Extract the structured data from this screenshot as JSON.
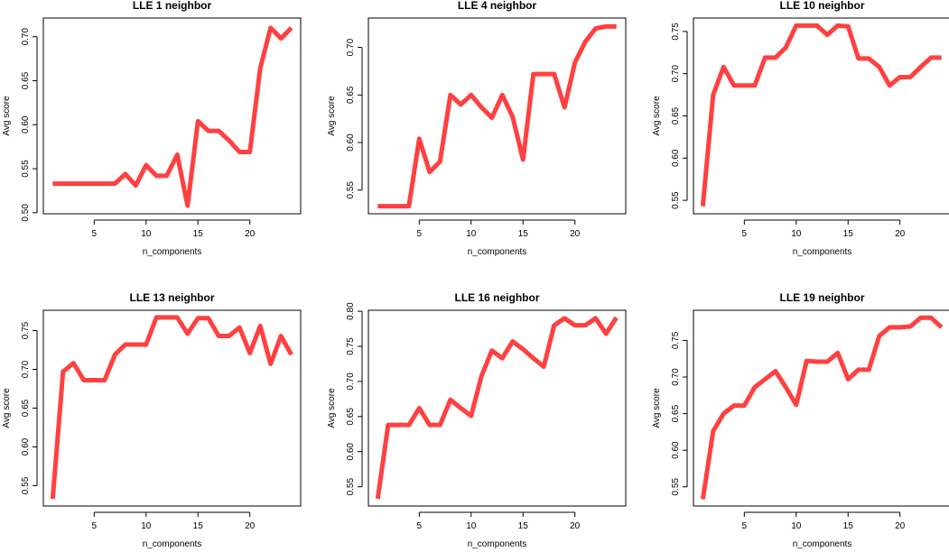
{
  "colors": {
    "line": "#ff4040",
    "axis": "#000000",
    "background": "#ffffff"
  },
  "chart_data": [
    {
      "type": "line",
      "title": "LLE 1 neighbor",
      "xlabel": "n_components",
      "ylabel": "Avg score",
      "xlim": [
        0.1,
        24.9
      ],
      "ylim": [
        0.4988,
        0.7212
      ],
      "xticks": [
        5,
        10,
        15,
        20
      ],
      "yticks": [
        0.5,
        0.55,
        0.6,
        0.65,
        0.7
      ],
      "ytick_labels": [
        "0.50",
        "0.55",
        "0.60",
        "0.65",
        "0.70"
      ],
      "x": [
        1,
        2,
        3,
        4,
        5,
        6,
        7,
        8,
        9,
        10,
        11,
        12,
        13,
        14,
        15,
        16,
        17,
        18,
        19,
        20,
        21,
        22,
        23,
        24
      ],
      "y": [
        0.533,
        0.533,
        0.533,
        0.533,
        0.533,
        0.533,
        0.533,
        0.544,
        0.531,
        0.554,
        0.542,
        0.542,
        0.566,
        0.508,
        0.604,
        0.593,
        0.593,
        0.582,
        0.569,
        0.569,
        0.664,
        0.71,
        0.698,
        0.71
      ]
    },
    {
      "type": "line",
      "title": "LLE 4 neighbor",
      "xlabel": "n_components",
      "ylabel": "Avg score",
      "xlim": [
        0.1,
        24.9
      ],
      "ylim": [
        0.5251,
        0.7309
      ],
      "xticks": [
        5,
        10,
        15,
        20
      ],
      "yticks": [
        0.55,
        0.6,
        0.65,
        0.7
      ],
      "ytick_labels": [
        "0.55",
        "0.60",
        "0.65",
        "0.70"
      ],
      "x": [
        1,
        2,
        3,
        4,
        5,
        6,
        7,
        8,
        9,
        10,
        11,
        12,
        13,
        14,
        15,
        16,
        17,
        18,
        19,
        20,
        21,
        22,
        23,
        24
      ],
      "y": [
        0.533,
        0.533,
        0.533,
        0.533,
        0.604,
        0.569,
        0.58,
        0.65,
        0.64,
        0.65,
        0.637,
        0.626,
        0.65,
        0.627,
        0.582,
        0.672,
        0.672,
        0.672,
        0.637,
        0.684,
        0.706,
        0.72,
        0.722,
        0.722
      ]
    },
    {
      "type": "line",
      "title": "LLE 10 neighbor",
      "xlabel": "n_components",
      "ylabel": "Avg score",
      "xlim": [
        0.1,
        24.9
      ],
      "ylim": [
        0.5341,
        0.7659
      ],
      "xticks": [
        5,
        10,
        15,
        20
      ],
      "yticks": [
        0.55,
        0.6,
        0.65,
        0.7,
        0.75
      ],
      "ytick_labels": [
        "0.55",
        "0.60",
        "0.65",
        "0.70",
        "0.75"
      ],
      "x": [
        1,
        2,
        3,
        4,
        5,
        6,
        7,
        8,
        9,
        10,
        11,
        12,
        13,
        14,
        15,
        16,
        17,
        18,
        19,
        20,
        21,
        22,
        23,
        24
      ],
      "y": [
        0.543,
        0.675,
        0.708,
        0.686,
        0.686,
        0.686,
        0.719,
        0.719,
        0.731,
        0.757,
        0.757,
        0.757,
        0.746,
        0.757,
        0.756,
        0.718,
        0.718,
        0.708,
        0.686,
        0.696,
        0.696,
        0.708,
        0.719,
        0.719
      ]
    },
    {
      "type": "line",
      "title": "LLE 13 neighbor",
      "xlabel": "n_components",
      "ylabel": "Avg score",
      "xlim": [
        0.1,
        24.9
      ],
      "ylim": [
        0.5238,
        0.7762
      ],
      "xticks": [
        5,
        10,
        15,
        20
      ],
      "yticks": [
        0.55,
        0.6,
        0.65,
        0.7,
        0.75
      ],
      "ytick_labels": [
        "0.55",
        "0.60",
        "0.65",
        "0.70",
        "0.75"
      ],
      "x": [
        1,
        2,
        3,
        4,
        5,
        6,
        7,
        8,
        9,
        10,
        11,
        12,
        13,
        14,
        15,
        16,
        17,
        18,
        19,
        20,
        21,
        22,
        23,
        24
      ],
      "y": [
        0.533,
        0.697,
        0.708,
        0.686,
        0.686,
        0.686,
        0.719,
        0.732,
        0.732,
        0.732,
        0.767,
        0.767,
        0.767,
        0.746,
        0.766,
        0.766,
        0.743,
        0.743,
        0.754,
        0.721,
        0.756,
        0.707,
        0.743,
        0.719
      ]
    },
    {
      "type": "line",
      "title": "LLE 16 neighbor",
      "xlabel": "n_components",
      "ylabel": "Avg score",
      "xlim": [
        0.1,
        24.9
      ],
      "ylim": [
        0.5226,
        0.8014
      ],
      "xticks": [
        5,
        10,
        15,
        20
      ],
      "yticks": [
        0.55,
        0.6,
        0.65,
        0.7,
        0.75,
        0.8
      ],
      "ytick_labels": [
        "0.55",
        "0.60",
        "0.65",
        "0.70",
        "0.75",
        "0.80"
      ],
      "x": [
        1,
        2,
        3,
        4,
        5,
        6,
        7,
        8,
        9,
        10,
        11,
        12,
        13,
        14,
        15,
        16,
        17,
        18,
        19,
        20,
        21,
        22,
        23,
        24
      ],
      "y": [
        0.533,
        0.638,
        0.638,
        0.638,
        0.662,
        0.638,
        0.638,
        0.674,
        0.662,
        0.651,
        0.708,
        0.744,
        0.733,
        0.757,
        0.746,
        0.733,
        0.721,
        0.78,
        0.79,
        0.78,
        0.78,
        0.79,
        0.768,
        0.791
      ]
    },
    {
      "type": "line",
      "title": "LLE 19 neighbor",
      "xlabel": "n_components",
      "ylabel": "Avg score",
      "xlim": [
        0.1,
        24.9
      ],
      "ylim": [
        0.5238,
        0.7912
      ],
      "xticks": [
        5,
        10,
        15,
        20
      ],
      "yticks": [
        0.55,
        0.6,
        0.65,
        0.7,
        0.75
      ],
      "ytick_labels": [
        "0.55",
        "0.60",
        "0.65",
        "0.70",
        "0.75"
      ],
      "x": [
        1,
        2,
        3,
        4,
        5,
        6,
        7,
        8,
        9,
        10,
        11,
        12,
        13,
        14,
        15,
        16,
        17,
        18,
        19,
        20,
        21,
        22,
        23,
        24
      ],
      "y": [
        0.533,
        0.626,
        0.65,
        0.661,
        0.661,
        0.686,
        0.697,
        0.708,
        0.686,
        0.662,
        0.722,
        0.721,
        0.721,
        0.733,
        0.697,
        0.71,
        0.71,
        0.756,
        0.768,
        0.768,
        0.769,
        0.781,
        0.781,
        0.768
      ]
    }
  ]
}
